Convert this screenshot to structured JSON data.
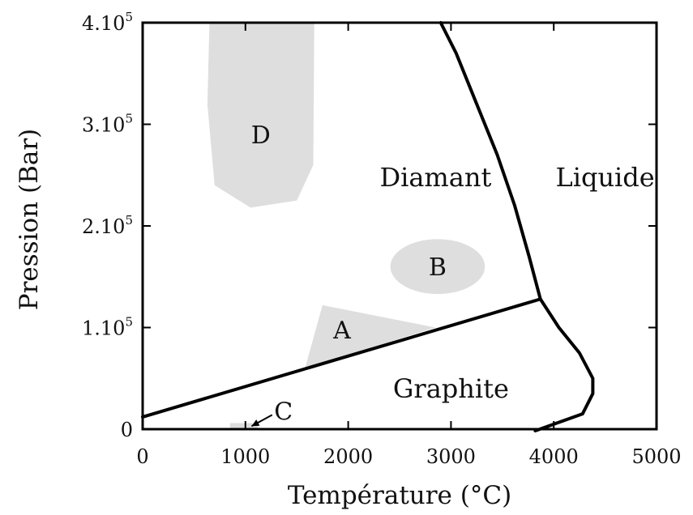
{
  "chart_data": {
    "type": "phase-diagram",
    "xlabel": "Température (°C)",
    "ylabel": "Pression (Bar)",
    "xlim": [
      0,
      5000
    ],
    "ylim": [
      0,
      400000
    ],
    "x_ticks": [
      {
        "value": 0,
        "label": "0"
      },
      {
        "value": 1000,
        "label": "1000"
      },
      {
        "value": 2000,
        "label": "2000"
      },
      {
        "value": 3000,
        "label": "3000"
      },
      {
        "value": 4000,
        "label": "4000"
      },
      {
        "value": 5000,
        "label": "5000"
      }
    ],
    "y_ticks": [
      {
        "value": 0,
        "label": "0"
      },
      {
        "value": 100000,
        "label": "1.10",
        "exp": "5"
      },
      {
        "value": 200000,
        "label": "2.10",
        "exp": "5"
      },
      {
        "value": 300000,
        "label": "3.10",
        "exp": "5"
      },
      {
        "value": 400000,
        "label": "4.10",
        "exp": "5"
      }
    ],
    "phases": [
      {
        "name": "Diamant",
        "x": 2850,
        "y": 248000
      },
      {
        "name": "Liquide",
        "x": 4500,
        "y": 248000
      },
      {
        "name": "Graphite",
        "x": 3000,
        "y": 40000
      }
    ],
    "boundaries": [
      {
        "name": "graphite-diamant",
        "points": [
          [
            0,
            12000
          ],
          [
            3870,
            128000
          ]
        ]
      },
      {
        "name": "diamant-liquide",
        "points": [
          [
            2900,
            400000
          ],
          [
            3050,
            370000
          ],
          [
            3250,
            320000
          ],
          [
            3450,
            270000
          ],
          [
            3620,
            220000
          ],
          [
            3760,
            170000
          ],
          [
            3870,
            128000
          ]
        ]
      },
      {
        "name": "graphite-liquide",
        "points": [
          [
            3870,
            128000
          ],
          [
            4050,
            100000
          ],
          [
            4250,
            75000
          ],
          [
            4380,
            50000
          ],
          [
            4380,
            35000
          ],
          [
            4280,
            15000
          ],
          [
            3820,
            -3000
          ]
        ]
      }
    ],
    "zones": [
      {
        "name": "A",
        "label_x": 1940,
        "label_y": 98000,
        "points": [
          [
            1750,
            122000
          ],
          [
            2850,
            100000
          ],
          [
            1580,
            60000
          ]
        ]
      },
      {
        "name": "B",
        "shape": "ellipse",
        "cx": 2870,
        "cy": 160000,
        "rx": 460,
        "ry": 27000,
        "label_x": 2870,
        "label_y": 160000
      },
      {
        "name": "C",
        "label_x": 1370,
        "label_y": 18000,
        "points": [
          [
            850,
            6000
          ],
          [
            1120,
            6000
          ],
          [
            1120,
            0
          ],
          [
            850,
            0
          ]
        ]
      },
      {
        "name": "D",
        "label_x": 1150,
        "label_y": 290000,
        "points": [
          [
            650,
            400000
          ],
          [
            1670,
            400000
          ],
          [
            1660,
            260000
          ],
          [
            1500,
            225000
          ],
          [
            1050,
            218000
          ],
          [
            700,
            240000
          ],
          [
            630,
            320000
          ]
        ]
      }
    ],
    "annotations": [
      {
        "name": "C-arrow",
        "from": [
          1260,
          14000
        ],
        "to": [
          1060,
          3000
        ]
      }
    ],
    "grid": false,
    "legend": "none"
  }
}
